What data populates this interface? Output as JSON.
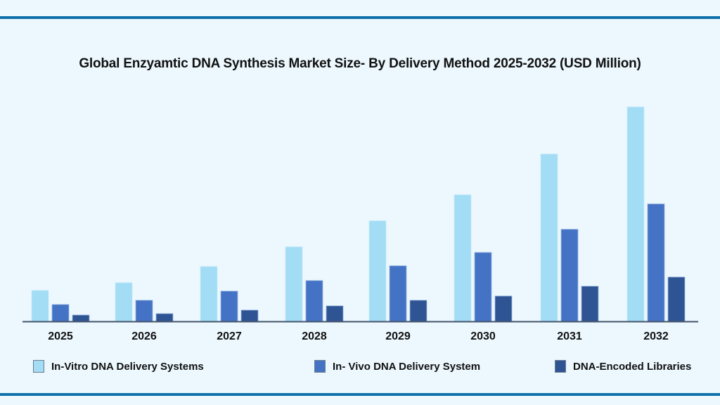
{
  "chart_data": {
    "type": "bar",
    "title": "Global Enzyamtic DNA Synthesis Market Size- By Delivery Method 2025-2032 (USD Million)",
    "xlabel": "",
    "ylabel": "",
    "y_axis_shown": false,
    "grid": false,
    "value_units_note": "relative (no y-axis labels shown)",
    "ylim": [
      0,
      320
    ],
    "categories": [
      "2025",
      "2026",
      "2027",
      "2028",
      "2029",
      "2030",
      "2031",
      "2032"
    ],
    "series": [
      {
        "name": "In-Vitro DNA Delivery Systems",
        "color": "#a3dcf5",
        "values": [
          44,
          55,
          78,
          106,
          143,
          180,
          238,
          305
        ]
      },
      {
        "name": "In- Vivo DNA Delivery System",
        "color": "#4473c5",
        "values": [
          24,
          30,
          43,
          58,
          79,
          98,
          131,
          167
        ]
      },
      {
        "name": "DNA-Encoded Libraries",
        "color": "#2f5494",
        "values": [
          9,
          11,
          16,
          22,
          30,
          36,
          50,
          63
        ]
      }
    ],
    "legend_position": "bottom"
  },
  "colors": {
    "background": "#ecf8fe",
    "rule": "#0f71aa",
    "axis": "#44546a"
  }
}
